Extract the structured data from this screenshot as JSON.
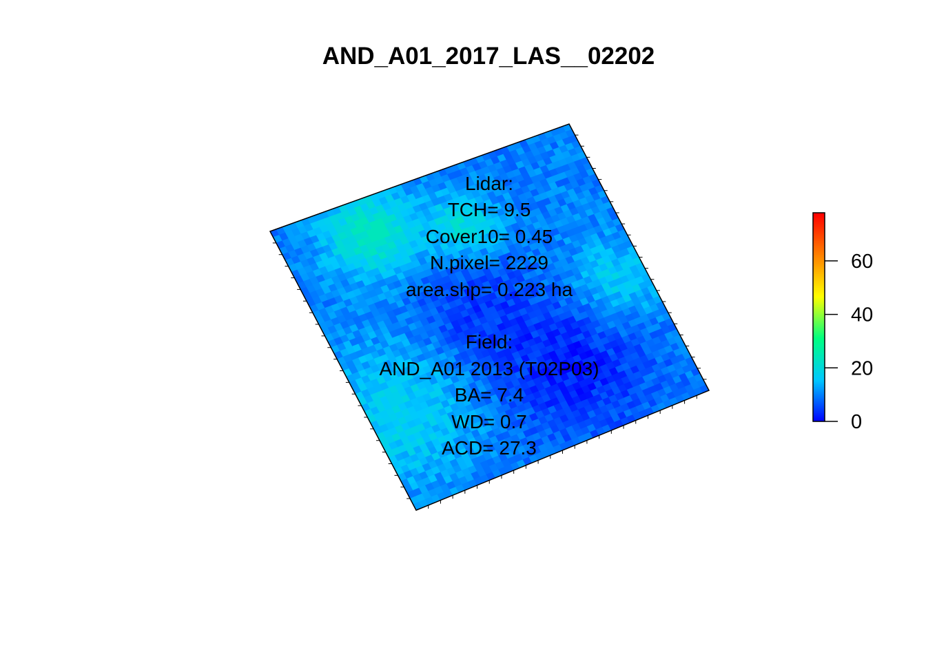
{
  "chart_data": {
    "type": "heatmap",
    "title": "AND_A01_2017_LAS__02202",
    "colorbar": {
      "palette": "rainbow",
      "palette_colors": [
        "#0000ff",
        "#00c8ff",
        "#00ff80",
        "#ffff00",
        "#ff8000",
        "#ff0000"
      ],
      "range": [
        0,
        78
      ],
      "ticks": [
        0,
        20,
        40,
        60
      ],
      "tick_labels": [
        "0",
        "20",
        "40",
        "60"
      ]
    },
    "raster": {
      "description_value_range": [
        0,
        25
      ],
      "shape": "rotated square plot",
      "corners_data": {
        "note": "plot outline in normalized plot frame: left, top, right, bottom corners"
      }
    },
    "annotations": {
      "lidar_header": "Lidar:",
      "tch": "TCH= 9.5",
      "cover10": "Cover10= 0.45",
      "npixel": "N.pixel= 2229",
      "area": "area.shp= 0.223 ha",
      "field_header": "Field:",
      "plot_id": "AND_A01 2013 (T02P03)",
      "ba": "BA= 7.4",
      "wd": "WD= 0.7",
      "acd": "ACD= 27.3"
    }
  }
}
